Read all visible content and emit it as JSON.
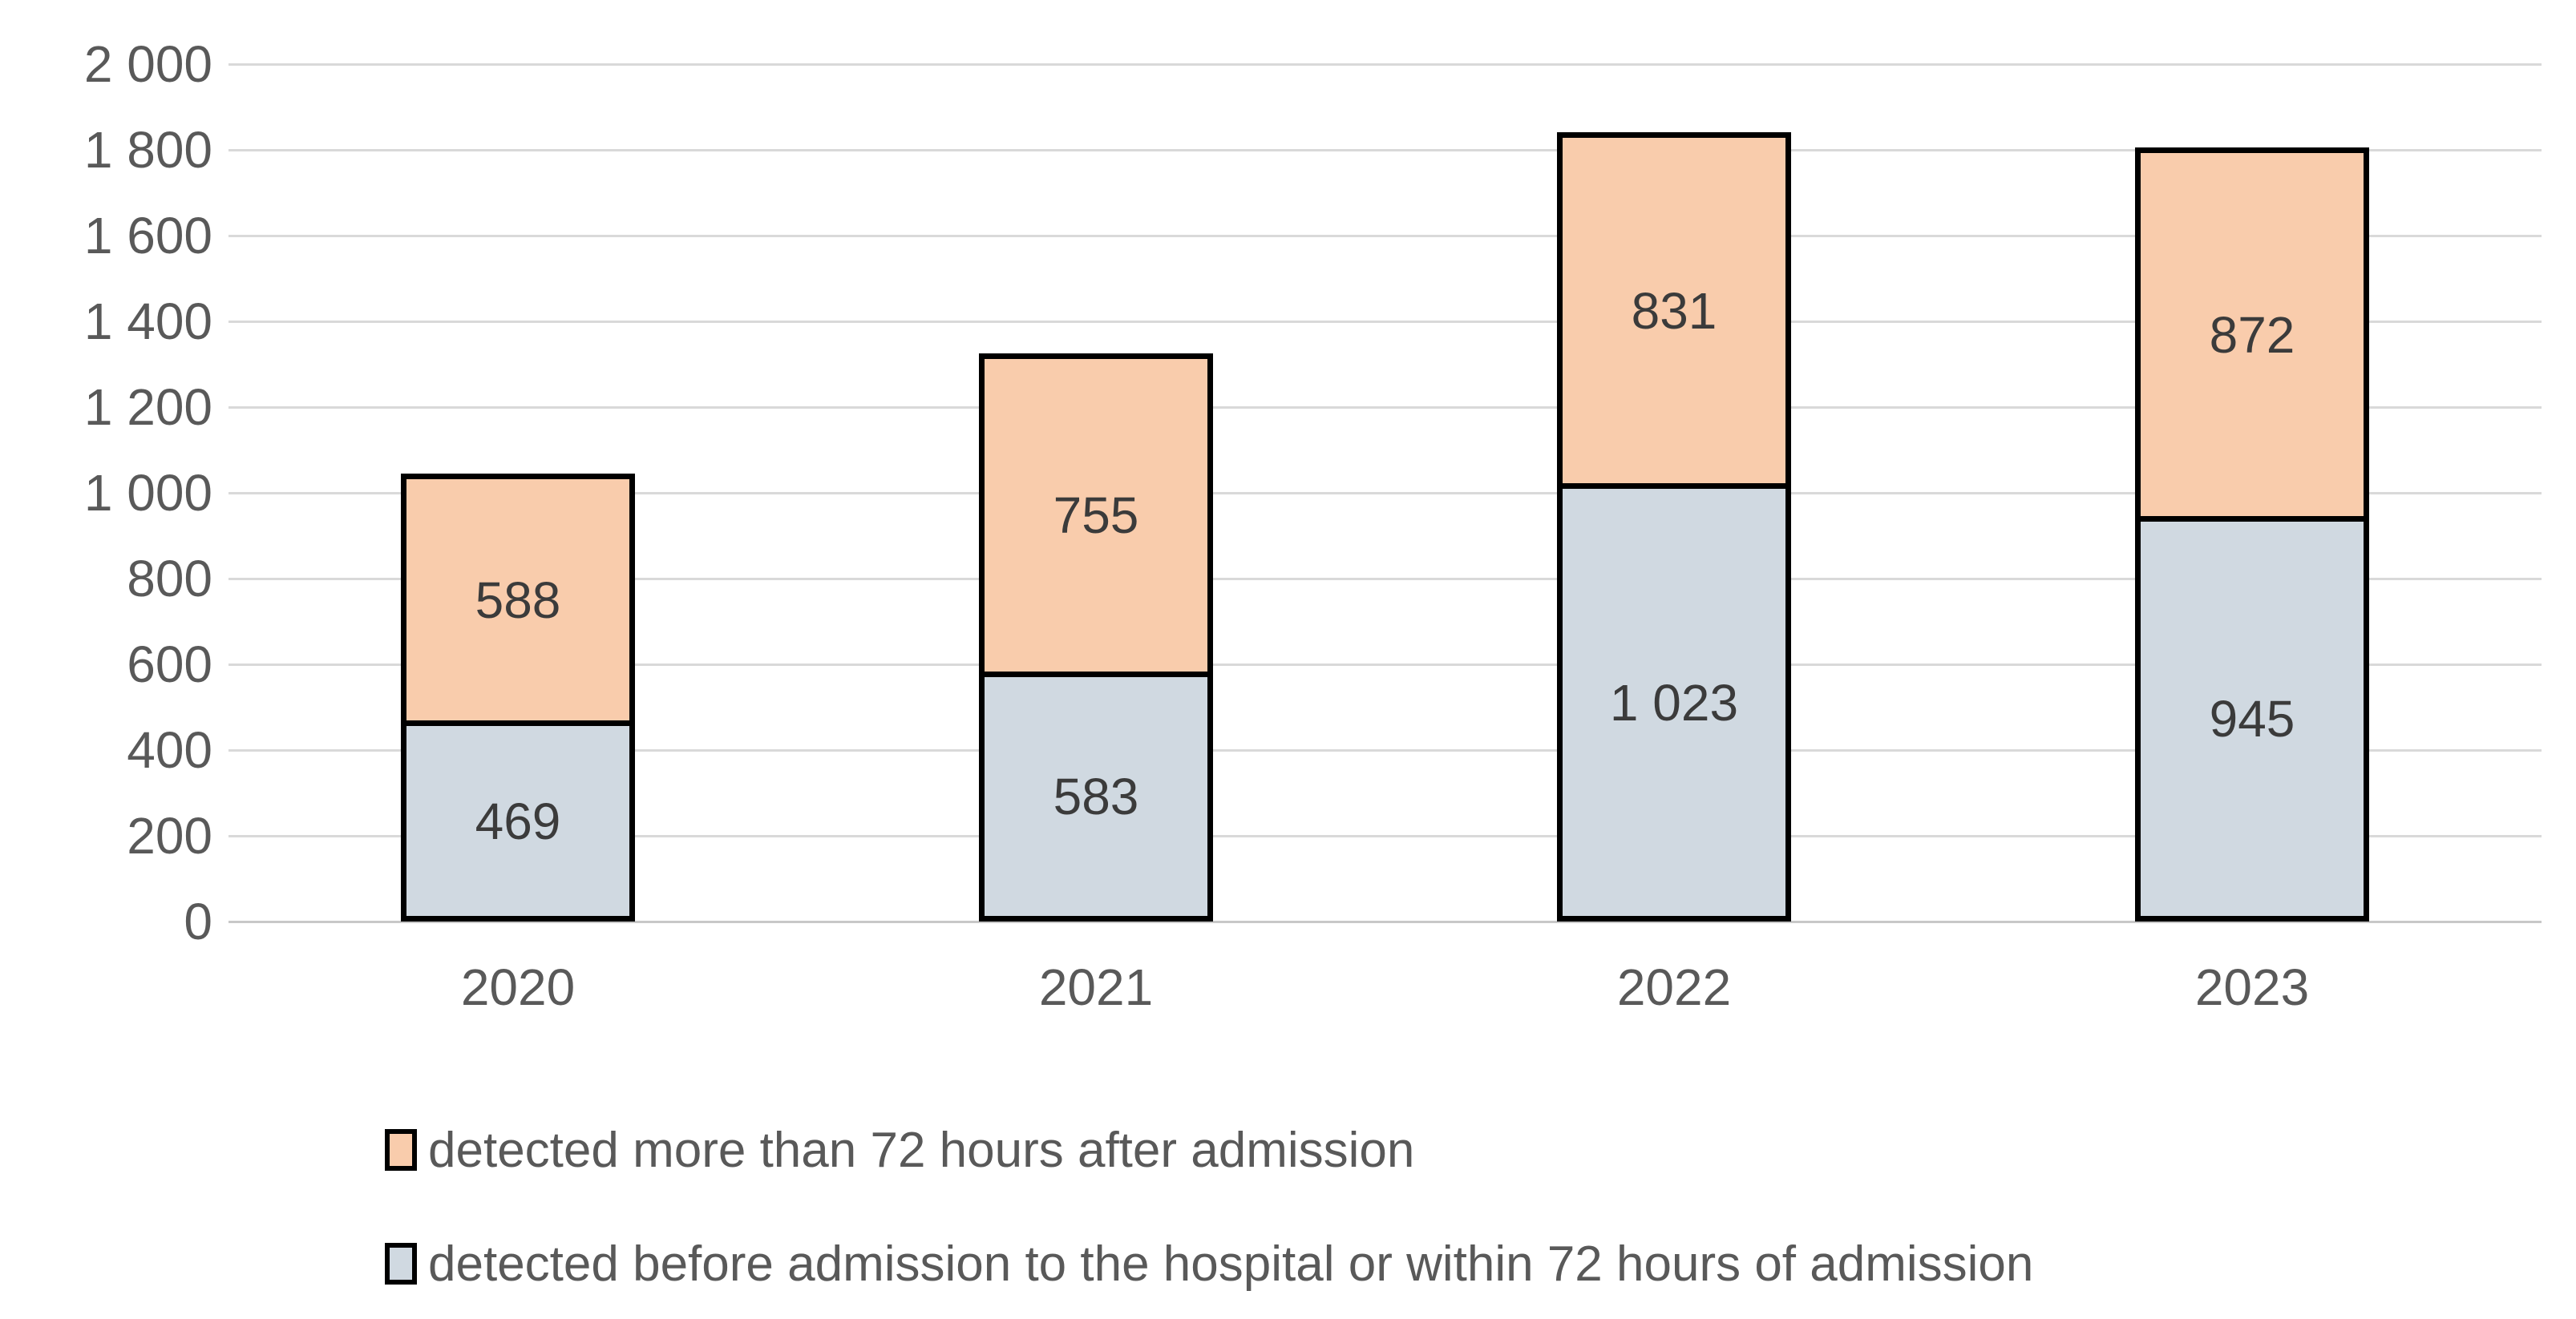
{
  "chart_data": {
    "type": "bar",
    "stacked": true,
    "categories": [
      "2020",
      "2021",
      "2022",
      "2023"
    ],
    "series": [
      {
        "name": "detected before admission to the hospital or within 72 hours of admission",
        "color": "#D0D9E1",
        "values": [
          469,
          583,
          1023,
          945
        ],
        "value_labels": [
          "469",
          "583",
          "1 023",
          "945"
        ]
      },
      {
        "name": "detected more than 72 hours after admission",
        "color": "#F9CCAC",
        "values": [
          588,
          755,
          831,
          872
        ],
        "value_labels": [
          "588",
          "755",
          "831",
          "872"
        ]
      }
    ],
    "y_axis": {
      "min": 0,
      "max": 2000,
      "step": 200,
      "tick_labels": [
        "0",
        "200",
        "400",
        "600",
        "800",
        "1 000",
        "1 200",
        "1 400",
        "1 600",
        "1 800",
        "2 000"
      ]
    },
    "x_axis": {
      "tick_labels": [
        "2020",
        "2021",
        "2022",
        "2023"
      ]
    },
    "grid": true,
    "legend_position": "bottom-left",
    "legend": [
      {
        "label": "detected more than 72 hours after admission",
        "color": "#F9CCAC"
      },
      {
        "label": "detected before admission to the hospital or within 72 hours of admission",
        "color": "#D0D9E1"
      }
    ],
    "colors": {
      "grid": "#D9D9D9",
      "axis_line": "#C8C8C8",
      "tick_text": "#595959",
      "value_label_text": "#3B3B3B",
      "bar_border": "#000000"
    }
  }
}
